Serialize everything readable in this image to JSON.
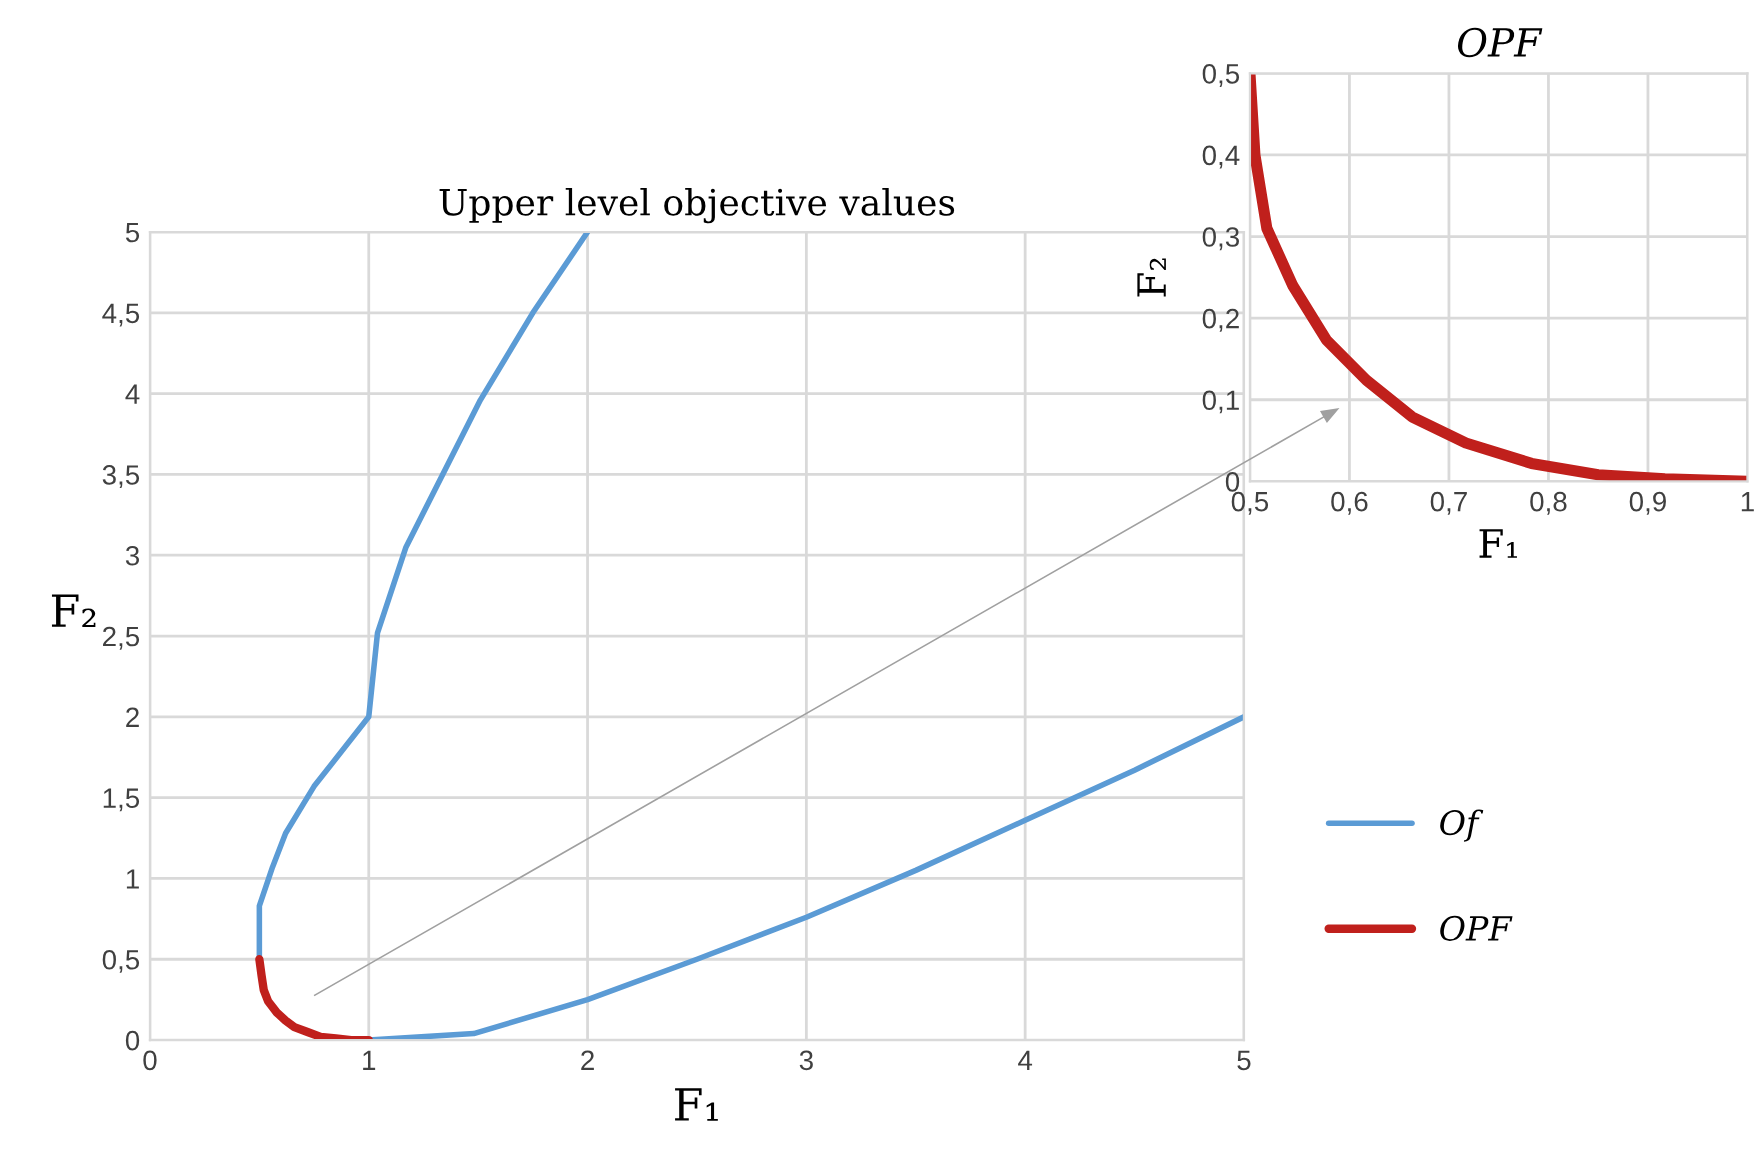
{
  "chart_data": [
    {
      "type": "line",
      "title": "Upper level objective values",
      "xlabel": "F₁",
      "ylabel": "F₂",
      "xlim": [
        0,
        5
      ],
      "ylim": [
        0,
        5
      ],
      "xticks": [
        0,
        1,
        2,
        3,
        4,
        5
      ],
      "yticks": [
        0,
        {
          "value": 0.5,
          "label": "0,5"
        },
        1,
        {
          "value": 1.5,
          "label": "1,5"
        },
        2,
        {
          "value": 2.5,
          "label": "2,5"
        },
        3,
        {
          "value": 3.5,
          "label": "3,5"
        },
        4,
        {
          "value": 4.5,
          "label": "4,5"
        },
        5
      ],
      "grid": true,
      "legend": "right",
      "line_style": "solid",
      "marker": "none",
      "series": [
        {
          "name": "Of",
          "color": "#5b9bd5",
          "x": [
            0.5,
            0.5,
            0.56,
            0.62,
            0.75,
            1.0,
            1.04,
            1.17,
            1.51,
            1.75,
            2.0,
            null,
            1.0,
            1.48,
            2.0,
            2.5,
            3.0,
            3.5,
            4.0,
            4.5,
            5.0
          ],
          "values": [
            0.52,
            0.83,
            1.07,
            1.28,
            1.57,
            2.0,
            2.52,
            3.05,
            3.96,
            4.5,
            5.0,
            null,
            0.0,
            0.04,
            0.25,
            0.5,
            0.76,
            1.05,
            1.36,
            1.67,
            2.0
          ]
        },
        {
          "name": "OPF",
          "color": "#c0201c",
          "x": [
            0.5,
            0.51,
            0.52,
            0.54,
            0.58,
            0.62,
            0.66,
            0.72,
            0.78,
            0.85,
            0.92,
            1.0
          ],
          "values": [
            0.5,
            0.4,
            0.31,
            0.24,
            0.17,
            0.12,
            0.08,
            0.05,
            0.02,
            0.01,
            0.0,
            0.0
          ]
        }
      ]
    },
    {
      "type": "line",
      "title": "OPF",
      "xlabel": "F₁",
      "ylabel": "F₂",
      "xlim": [
        0.5,
        1
      ],
      "ylim": [
        0,
        0.5
      ],
      "xticks": [
        {
          "value": 0.5,
          "label": "0,5"
        },
        {
          "value": 0.6,
          "label": "0,6"
        },
        {
          "value": 0.7,
          "label": "0,7"
        },
        {
          "value": 0.8,
          "label": "0,8"
        },
        {
          "value": 0.9,
          "label": "0,9"
        },
        1
      ],
      "yticks": [
        0,
        {
          "value": 0.1,
          "label": "0,1"
        },
        {
          "value": 0.2,
          "label": "0,2"
        },
        {
          "value": 0.3,
          "label": "0,3"
        },
        {
          "value": 0.4,
          "label": "0,4"
        },
        {
          "value": 0.5,
          "label": "0,5"
        }
      ],
      "grid": true,
      "line_style": "solid",
      "marker": "none",
      "series": [
        {
          "color": "#c0201c",
          "x": [
            0.5,
            0.505,
            0.517,
            0.543,
            0.577,
            0.617,
            0.663,
            0.717,
            0.783,
            0.85,
            0.917,
            1.0
          ],
          "values": [
            0.5,
            0.4,
            0.31,
            0.24,
            0.173,
            0.124,
            0.079,
            0.047,
            0.022,
            0.008,
            0.003,
            0.0
          ]
        }
      ]
    }
  ]
}
